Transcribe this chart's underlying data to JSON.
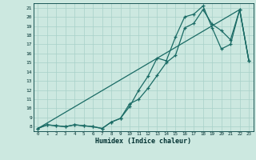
{
  "xlabel": "Humidex (Indice chaleur)",
  "background_color": "#cce8e0",
  "grid_color": "#a8d0c8",
  "line_color": "#1a6b65",
  "xlim": [
    -0.5,
    23.5
  ],
  "ylim": [
    7.5,
    21.5
  ],
  "xticks": [
    0,
    1,
    2,
    3,
    4,
    5,
    6,
    7,
    8,
    9,
    10,
    11,
    12,
    13,
    14,
    15,
    16,
    17,
    18,
    19,
    20,
    21,
    22,
    23
  ],
  "yticks": [
    8,
    9,
    10,
    11,
    12,
    13,
    14,
    15,
    16,
    17,
    18,
    19,
    20,
    21
  ],
  "line1_x": [
    0,
    1,
    2,
    3,
    4,
    5,
    6,
    7,
    8,
    9,
    10,
    11,
    12,
    13,
    14,
    15,
    16,
    17,
    18,
    19,
    20,
    21,
    22,
    23
  ],
  "line1_y": [
    7.8,
    8.2,
    8.1,
    8.0,
    8.2,
    8.1,
    8.0,
    7.8,
    8.5,
    8.9,
    10.2,
    12.0,
    13.5,
    15.5,
    15.2,
    17.8,
    20.0,
    20.3,
    21.2,
    18.8,
    16.5,
    17.0,
    20.8,
    15.2
  ],
  "line2_x": [
    0,
    1,
    2,
    3,
    4,
    5,
    6,
    7,
    8,
    9,
    10,
    11,
    12,
    13,
    14,
    15,
    16,
    17,
    18,
    19,
    20,
    21,
    22,
    23
  ],
  "line2_y": [
    7.8,
    8.2,
    8.1,
    8.0,
    8.2,
    8.1,
    8.0,
    7.8,
    8.5,
    8.9,
    10.5,
    11.0,
    12.2,
    13.6,
    15.0,
    15.8,
    18.8,
    19.3,
    20.8,
    19.2,
    18.5,
    17.5,
    20.8,
    15.2
  ],
  "line3_x": [
    0,
    22,
    23
  ],
  "line3_y": [
    7.8,
    20.8,
    15.2
  ]
}
